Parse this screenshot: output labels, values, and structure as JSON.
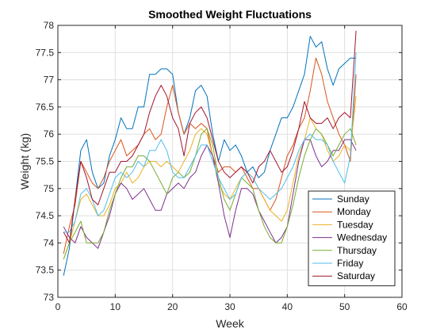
{
  "chart_data": {
    "type": "line",
    "title": "Smoothed Weight Fluctuations",
    "xlabel": "Week",
    "ylabel": "Weight (kg)",
    "xlim": [
      0,
      60
    ],
    "ylim": [
      73,
      78
    ],
    "xticks": [
      "0",
      "10",
      "20",
      "30",
      "40",
      "50",
      "60"
    ],
    "yticks": [
      "73",
      "73.5",
      "74",
      "74.5",
      "75",
      "75.5",
      "76",
      "76.5",
      "77",
      "77.5",
      "78"
    ],
    "grid": true,
    "legend_position": "bottom-right",
    "x": [
      1,
      2,
      3,
      4,
      5,
      6,
      7,
      8,
      9,
      10,
      11,
      12,
      13,
      14,
      15,
      16,
      17,
      18,
      19,
      20,
      21,
      22,
      23,
      24,
      25,
      26,
      27,
      28,
      29,
      30,
      31,
      32,
      33,
      34,
      35,
      36,
      37,
      38,
      39,
      40,
      41,
      42,
      43,
      44,
      45,
      46,
      47,
      48,
      49,
      50,
      51,
      52
    ],
    "series": [
      {
        "name": "Sunday",
        "color": "#0072BD",
        "values": [
          73.4,
          73.9,
          74.8,
          75.7,
          75.9,
          75.3,
          75.0,
          75.1,
          75.6,
          75.9,
          76.3,
          76.1,
          76.1,
          76.5,
          76.5,
          77.1,
          77.1,
          77.2,
          77.2,
          77.1,
          76.4,
          76.0,
          76.3,
          76.8,
          76.9,
          76.7,
          76.0,
          75.5,
          75.9,
          75.7,
          75.8,
          75.6,
          75.3,
          75.4,
          75.2,
          75.3,
          75.7,
          76.0,
          76.3,
          76.3,
          76.5,
          76.8,
          77.1,
          77.8,
          77.6,
          77.7,
          77.2,
          76.9,
          77.2,
          77.3,
          77.4,
          77.4
        ]
      },
      {
        "name": "Monday",
        "color": "#D95319",
        "values": [
          73.8,
          74.3,
          74.7,
          75.5,
          75.3,
          75.1,
          75.0,
          75.2,
          75.5,
          75.7,
          75.9,
          75.6,
          75.7,
          75.8,
          76.0,
          76.1,
          75.9,
          76.0,
          76.5,
          76.9,
          76.4,
          76.0,
          76.2,
          76.1,
          76.2,
          76.1,
          75.6,
          75.3,
          75.4,
          75.4,
          75.3,
          75.4,
          75.2,
          75.0,
          75.0,
          74.8,
          74.6,
          74.8,
          75.2,
          75.6,
          75.8,
          76.1,
          76.3,
          76.8,
          77.4,
          77.1,
          76.6,
          76.3,
          76.0,
          75.8,
          75.5,
          77.1
        ]
      },
      {
        "name": "Tuesday",
        "color": "#EDB120",
        "values": [
          73.7,
          74.0,
          74.4,
          74.8,
          74.9,
          74.7,
          74.5,
          74.5,
          74.7,
          75.0,
          75.1,
          75.3,
          75.1,
          75.2,
          75.4,
          75.5,
          75.5,
          75.4,
          75.5,
          75.4,
          75.3,
          75.5,
          75.7,
          76.0,
          76.1,
          76.0,
          75.6,
          75.1,
          74.9,
          74.8,
          75.0,
          75.2,
          75.3,
          75.2,
          75.0,
          74.8,
          74.6,
          74.5,
          74.4,
          74.6,
          75.1,
          75.6,
          75.9,
          76.3,
          76.1,
          76.0,
          75.7,
          75.5,
          75.6,
          75.8,
          75.7,
          76.7
        ]
      },
      {
        "name": "Wednesday",
        "color": "#7E2F8E",
        "values": [
          74.3,
          74.1,
          74.0,
          74.3,
          74.1,
          74.0,
          73.9,
          74.2,
          74.5,
          74.9,
          75.1,
          75.0,
          74.8,
          74.9,
          75.0,
          74.8,
          74.6,
          74.6,
          74.9,
          75.0,
          75.1,
          75.0,
          75.2,
          75.3,
          75.6,
          75.8,
          75.6,
          75.1,
          74.5,
          74.1,
          74.6,
          75.0,
          75.0,
          74.9,
          74.6,
          74.4,
          74.2,
          74.0,
          74.1,
          74.3,
          74.9,
          75.5,
          75.9,
          75.9,
          75.6,
          75.4,
          75.5,
          75.7,
          75.7,
          75.9,
          75.9,
          75.7
        ]
      },
      {
        "name": "Thursday",
        "color": "#77AC30",
        "values": [
          73.7,
          74.0,
          74.2,
          74.4,
          74.0,
          74.0,
          74.0,
          74.2,
          74.6,
          74.9,
          75.2,
          75.4,
          75.4,
          75.6,
          75.6,
          75.5,
          75.3,
          75.1,
          74.9,
          75.2,
          75.3,
          75.2,
          75.3,
          75.6,
          76.0,
          76.1,
          75.8,
          75.2,
          74.8,
          74.6,
          74.9,
          75.2,
          75.1,
          75.0,
          74.6,
          74.3,
          74.1,
          74.0,
          74.0,
          74.3,
          74.7,
          75.2,
          75.6,
          75.9,
          76.1,
          76.0,
          75.8,
          75.6,
          75.8,
          76.0,
          76.1,
          75.8
        ]
      },
      {
        "name": "Friday",
        "color": "#4DBEEE",
        "values": [
          74.2,
          74.2,
          74.4,
          74.9,
          75.0,
          74.8,
          74.5,
          74.6,
          74.9,
          75.2,
          75.3,
          75.2,
          75.3,
          75.5,
          75.4,
          75.7,
          75.7,
          75.9,
          75.7,
          75.3,
          75.2,
          75.2,
          75.4,
          75.6,
          75.8,
          75.8,
          75.5,
          75.2,
          75.0,
          74.8,
          74.9,
          75.2,
          75.3,
          75.2,
          75.0,
          74.9,
          74.8,
          74.9,
          75.0,
          75.2,
          75.4,
          75.7,
          75.9,
          76.0,
          75.9,
          75.9,
          75.8,
          75.5,
          75.3,
          75.1,
          75.6,
          77.5
        ]
      },
      {
        "name": "Saturday",
        "color": "#A2142F",
        "values": [
          74.2,
          74.0,
          74.8,
          75.5,
          75.2,
          74.8,
          74.7,
          75.0,
          75.3,
          75.3,
          75.5,
          75.5,
          75.6,
          75.8,
          76.0,
          76.4,
          76.7,
          76.9,
          76.7,
          76.3,
          76.1,
          75.6,
          76.2,
          76.4,
          76.5,
          76.3,
          75.9,
          75.5,
          75.3,
          75.2,
          75.3,
          75.4,
          75.3,
          75.1,
          75.4,
          75.5,
          75.7,
          75.5,
          75.3,
          75.4,
          75.7,
          76.1,
          76.6,
          76.3,
          76.2,
          76.2,
          76.3,
          76.1,
          76.3,
          76.4,
          76.3,
          77.9
        ]
      }
    ]
  }
}
